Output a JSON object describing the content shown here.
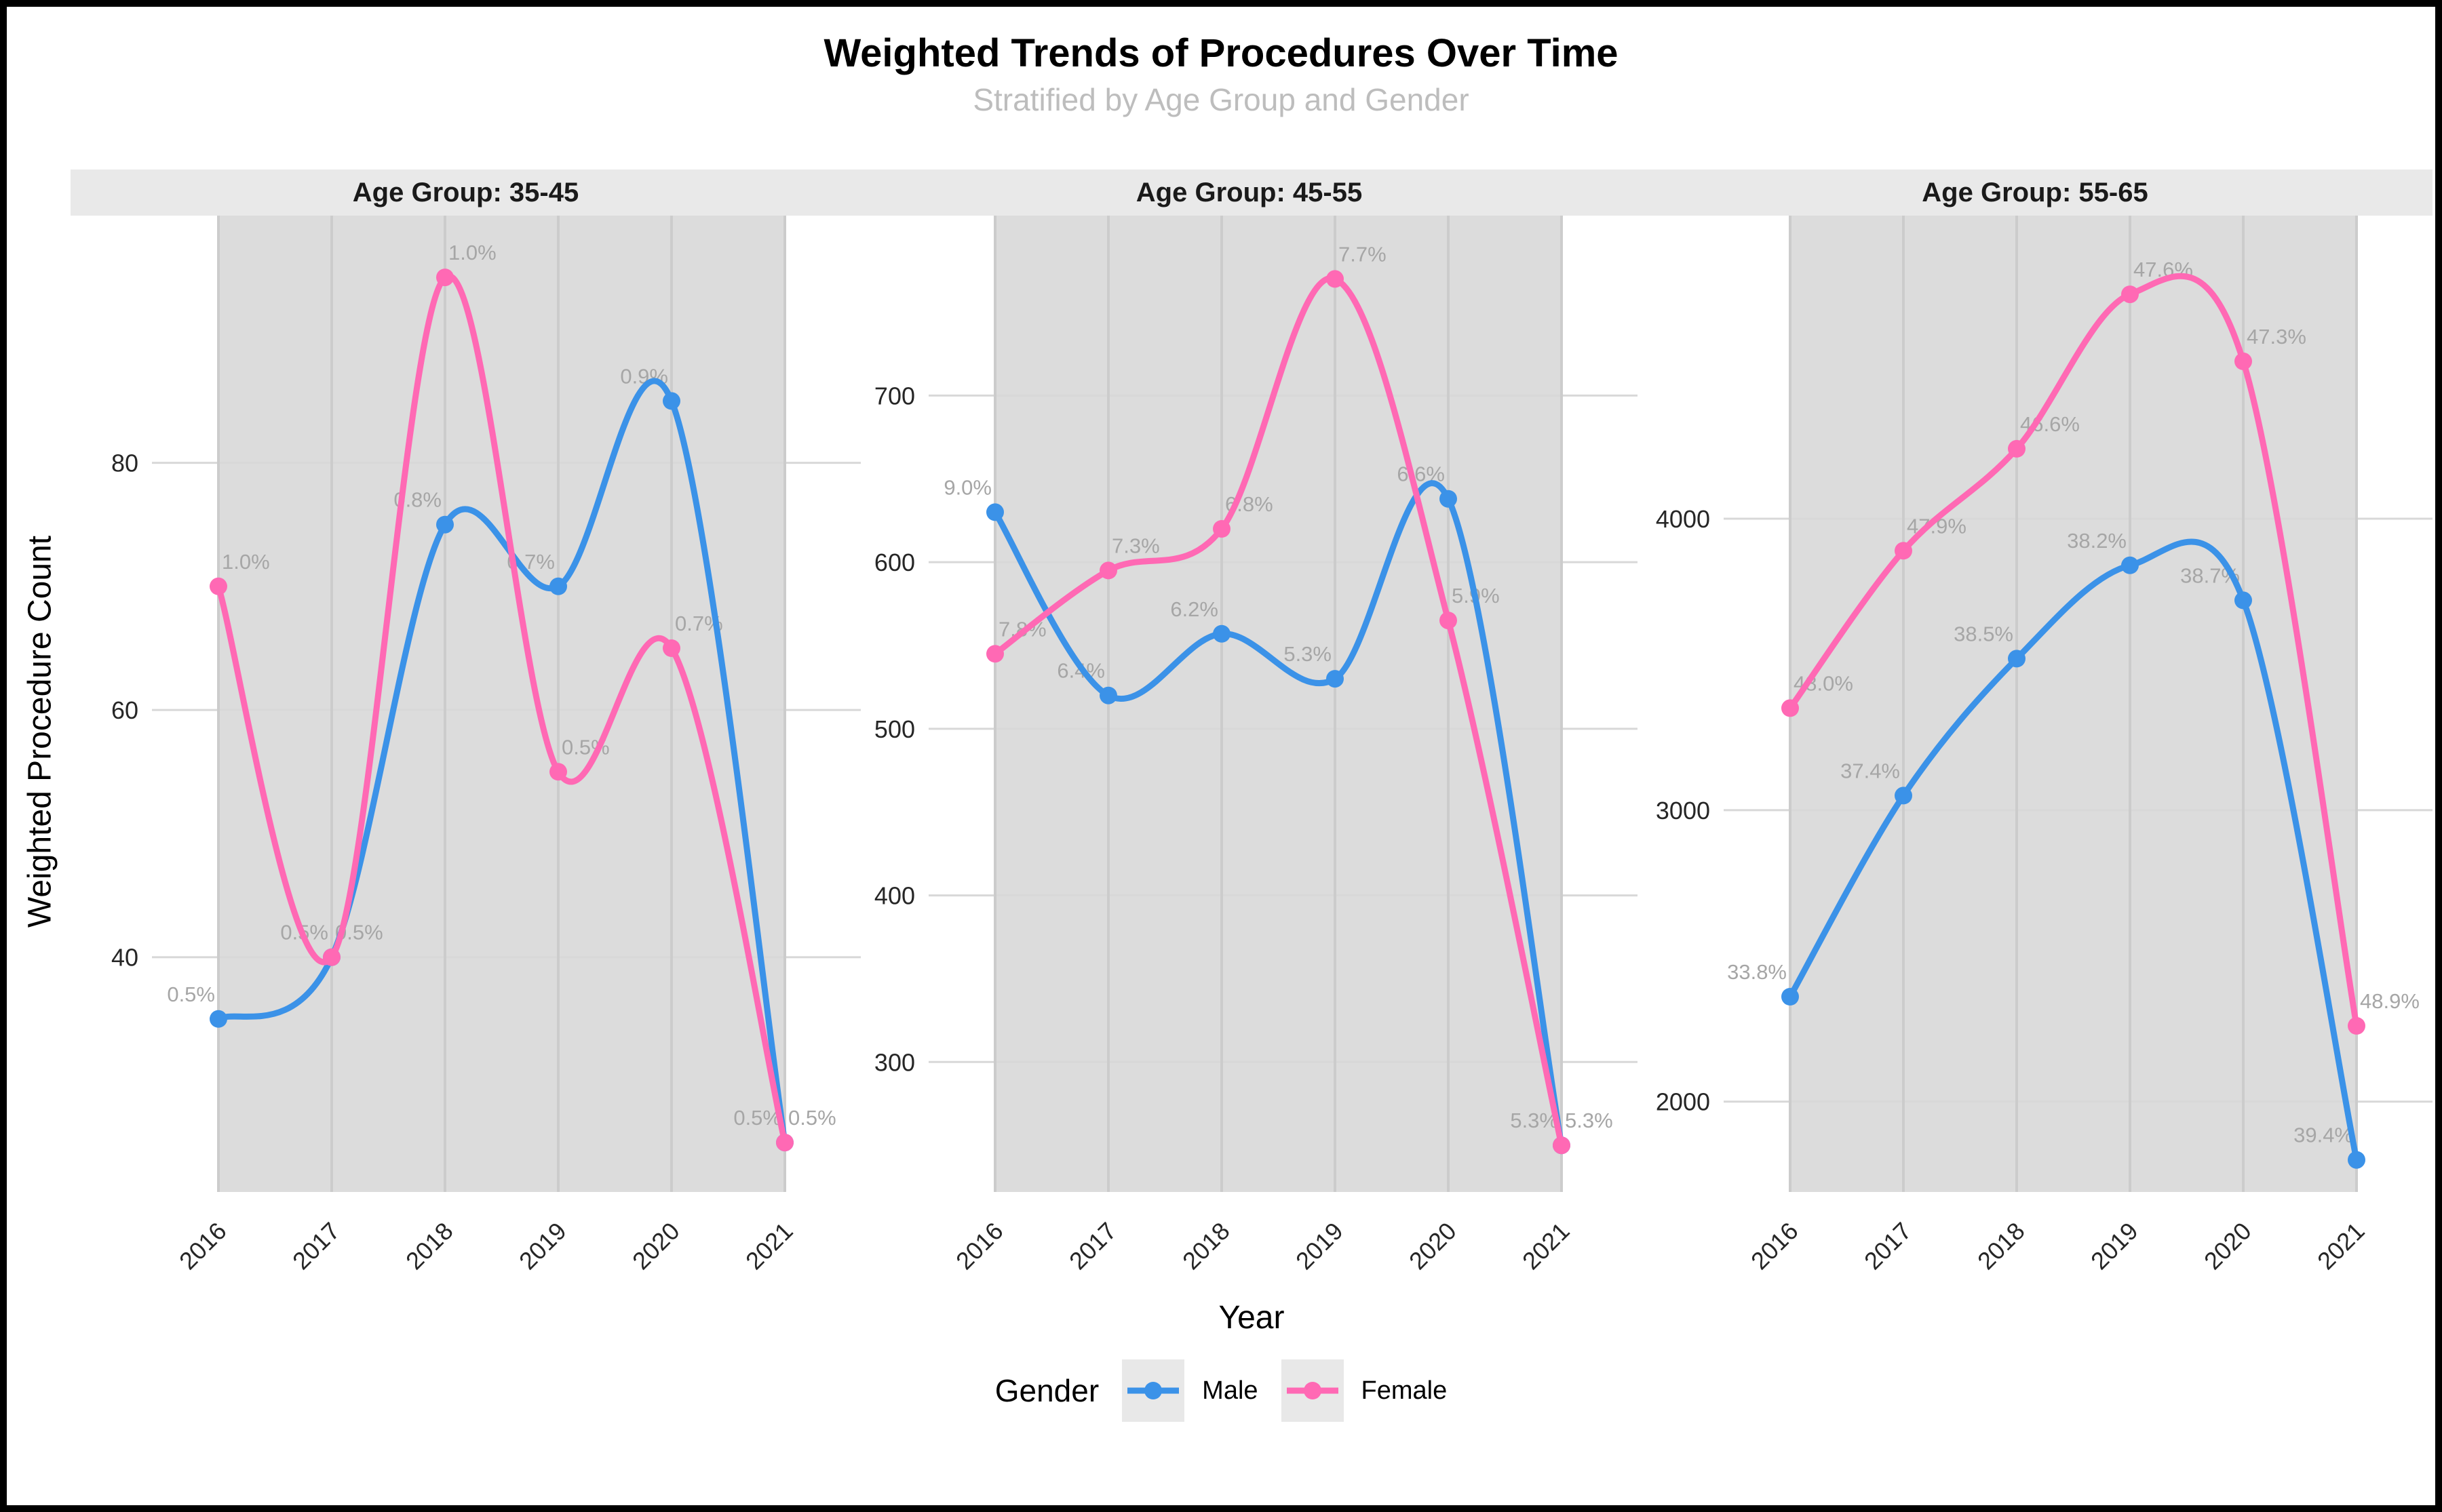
{
  "title": "Weighted Trends of Procedures Over Time",
  "subtitle": "Stratified by Age Group and Gender",
  "axes": {
    "x_label": "Year",
    "y_label": "Weighted Procedure Count"
  },
  "legend": {
    "title": "Gender",
    "items": [
      {
        "label": "Male",
        "color": "#3B92E8"
      },
      {
        "label": "Female",
        "color": "#FF69B4"
      }
    ]
  },
  "colors": {
    "panel_band": "#DCDCDC",
    "grid_vertical": "#CCCCCC",
    "grid_horizontal": "#D8D8D8",
    "strip_background": "#E9E9E9",
    "subtitle_text": "#BDBDBD",
    "data_label_text": "#A6A6A6",
    "male": "#3B92E8",
    "female": "#FF69B4"
  },
  "chart_data": {
    "type": "line",
    "x": [
      2016,
      2017,
      2018,
      2019,
      2020,
      2021
    ],
    "xlabel": "Year",
    "ylabel": "Weighted Procedure Count",
    "grid": true,
    "legend_position": "bottom",
    "smooth": true,
    "facets": [
      {
        "strip": "Age Group: 35-45",
        "ylim": [
          21,
          100
        ],
        "yticks": [
          40,
          60,
          80
        ],
        "series": [
          {
            "name": "Male",
            "values": [
              35,
              40,
              75,
              70,
              85,
              25
            ],
            "point_labels": [
              "0.5%",
              "0.5%",
              "0.8%",
              "0.7%",
              "0.9%",
              "0.5%"
            ]
          },
          {
            "name": "Female",
            "values": [
              70,
              40,
              95,
              55,
              65,
              25
            ],
            "point_labels": [
              "1.0%",
              "0.5%",
              "1.0%",
              "0.5%",
              "0.7%",
              "0.5%"
            ]
          }
        ]
      },
      {
        "strip": "Age Group: 45-55",
        "ylim": [
          222,
          808
        ],
        "yticks": [
          300,
          400,
          500,
          600,
          700
        ],
        "series": [
          {
            "name": "Male",
            "values": [
              630,
              520,
              557,
              530,
              638,
              250
            ],
            "point_labels": [
              "9.0%",
              "6.4%",
              "6.2%",
              "5.3%",
              "6.6%",
              "5.3%"
            ]
          },
          {
            "name": "Female",
            "values": [
              545,
              595,
              620,
              770,
              565,
              250
            ],
            "point_labels": [
              "7.8%",
              "7.3%",
              "6.8%",
              "7.7%",
              "5.9%",
              "5.3%"
            ]
          }
        ]
      },
      {
        "strip": "Age Group: 55-65",
        "ylim": [
          1690,
          5040
        ],
        "yticks": [
          2000,
          3000,
          4000
        ],
        "series": [
          {
            "name": "Male",
            "values": [
              2360,
              3050,
              3520,
              3840,
              3720,
              1800
            ],
            "point_labels": [
              "33.8%",
              "37.4%",
              "38.5%",
              "38.2%",
              "38.7%",
              "39.4%"
            ]
          },
          {
            "name": "Female",
            "values": [
              3350,
              3890,
              4240,
              4770,
              4540,
              2260
            ],
            "point_labels": [
              "48.0%",
              "47.9%",
              "46.6%",
              "47.6%",
              "47.3%",
              "48.9%"
            ]
          }
        ]
      }
    ]
  }
}
